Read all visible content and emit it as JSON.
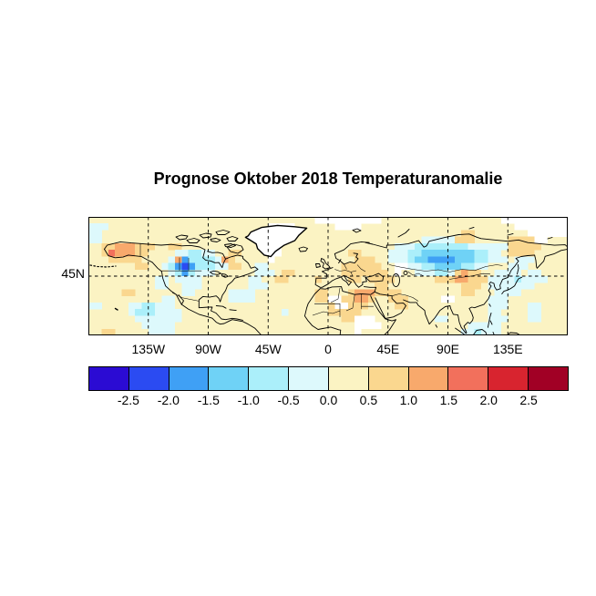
{
  "figure": {
    "title": "Prognose Oktober 2018 Temperaturanomalie",
    "background": "#FFFFFF"
  },
  "map": {
    "y_tick_label": "45N",
    "x_ticks": [
      {
        "label": "135W",
        "lon": -135
      },
      {
        "label": "90W",
        "lon": -90
      },
      {
        "label": "45W",
        "lon": -45
      },
      {
        "label": "0",
        "lon": 0
      },
      {
        "label": "45E",
        "lon": 45
      },
      {
        "label": "90E",
        "lon": 90
      },
      {
        "label": "135E",
        "lon": 135
      }
    ],
    "grid_lats": [
      45
    ],
    "lon_range": [
      -180,
      180
    ],
    "lat_range": [
      0,
      90
    ],
    "gridline_style": "dashed"
  },
  "colorbar": {
    "tick_labels": [
      "-2.5",
      "-2.0",
      "-1.5",
      "-1.0",
      "-0.5",
      "0.0",
      "0.5",
      "1.0",
      "1.5",
      "2.0",
      "2.5"
    ],
    "tick_values": [
      -2.5,
      -2.0,
      -1.5,
      -1.0,
      -0.5,
      0.0,
      0.5,
      1.0,
      1.5,
      2.0,
      2.5
    ],
    "colors": [
      "#2B0BD3",
      "#2B4BF2",
      "#3FA0F5",
      "#6FD2F6",
      "#ABEFFA",
      "#DDF9FC",
      "#FBF3C3",
      "#FAD78F",
      "#F8A96C",
      "#F2705C",
      "#D8242F",
      "#A10025"
    ],
    "no_data_color": "#FFFFFF"
  },
  "chart_data": {
    "type": "heatmap",
    "title": "Prognose Oktober 2018 Temperaturanomalie",
    "xlabel": "",
    "ylabel": "",
    "x_tick_labels": [
      "135W",
      "90W",
      "45W",
      "0",
      "45E",
      "90E",
      "135E"
    ],
    "y_tick_labels": [
      "45N"
    ],
    "lon_range": [
      -180,
      180
    ],
    "lat_range": [
      0,
      90
    ],
    "legend_position": "bottom",
    "grid_lines": {
      "lons": [
        -135,
        -90,
        -45,
        0,
        45,
        90,
        135
      ],
      "lats": [
        45
      ],
      "style": "dashed"
    },
    "colorbar_ticks": [
      -2.5,
      -2.0,
      -1.5,
      -1.0,
      -0.5,
      0.0,
      0.5,
      1.0,
      1.5,
      2.0,
      2.5
    ],
    "colorbar_colors": [
      "#2B0BD3",
      "#2B4BF2",
      "#3FA0F5",
      "#6FD2F6",
      "#ABEFFA",
      "#DDF9FC",
      "#FBF3C3",
      "#FAD78F",
      "#F8A96C",
      "#F2705C",
      "#D8242F",
      "#A10025"
    ],
    "grid": {
      "cols": 72,
      "rows": 18,
      "cell_deg": 5,
      "origin": "col 0 = 180W..175W, row 0 = 85N..90N",
      "palette_key": {
        "0": "< -2.5",
        "1": "-2.5..-2.0",
        "2": "-2.0..-1.5",
        "3": "-1.5..-1.0",
        "4": "-1.0..-0.5",
        "5": "-0.5..0.0",
        "6": "0.0..0.5",
        "7": "0.5..1.0",
        "8": "1.0..1.5",
        "9": "1.5..2.0",
        "A": "2.0..2.5",
        "B": "> 2.5",
        "W": "no data"
      },
      "rows_data": [
        [
          "666666",
          "666666",
          "666666",
          "666666",
          "666666",
          "6666WW",
          "WWWWWW",
          "WW6666",
          "666666",
          "666666",
          "66WWWW",
          "WWWWWW"
        ],
        [
          "555666",
          "666666",
          "666666",
          "666666",
          "666WWW",
          "W66666",
          "6WWWW6",
          "666666",
          "666666",
          "666666",
          "6666WW",
          "WWWWWW"
        ],
        [
          "556666",
          "666666",
          "666666",
          "666666",
          "666WWW",
          "W66666",
          "666666",
          "666666",
          "666666",
          "667766",
          "666666",
          "WWWWWW"
        ],
        [
          "556666",
          "666666",
          "666666",
          "666666",
          "666WW6",
          "666666",
          "666666",
          "666666",
          "665555",
          "577766",
          "666777",
          "7WW666"
        ],
        [
          "667788",
          "877766",
          "776666",
          "666666",
          "666WW6",
          "666666",
          "666666",
          "666655",
          "544444",
          "444555",
          "555777",
          "776666"
        ],
        [
          "667988",
          "877666",
          "655445",
          "566776",
          "666WW6",
          "666666",
          "666776",
          "666555",
          "443333",
          "333344",
          "556777",
          "766666"
        ],
        [
          "666777",
          "776666",
          "582444",
          "458766",
          "666W66",
          "666666",
          "666677",
          "766555",
          "433222",
          "233344",
          "555655",
          "566666"
        ],
        [
          "666666",
          "677665",
          "421244",
          "455776",
          "655666",
          "666666",
          "667777",
          "7766WW",
          "554433",
          "334455",
          "666555",
          "666666"
        ],
        [
          "666666",
          "666666",
          "542455",
          "566666",
          "655567",
          "766666",
          "667777",
          "7776W6",
          "655544",
          "578776",
          "655556",
          "556666"
        ],
        [
          "666666",
          "666655",
          "655556",
          "666666",
          "556677",
          "666676",
          "666776",
          "777766",
          "666677",
          "788777",
          "555545",
          "555666"
        ],
        [
          "666666",
          "666655",
          "665556",
          "666666",
          "555666",
          "666666",
          "666666",
          "677666",
          "666666",
          "667776",
          "555555",
          "566666"
        ],
        [
          "666667",
          "766666",
          "665566",
          "666555",
          "566666",
          "666677",
          "666788",
          "877776",
          "666666",
          "667766",
          "655556",
          "666666"
        ],
        [
          "666666",
          "666665",
          "566666",
          "666555",
          "566666",
          "666677",
          "WW7788",
          "766777",
          "66666W",
          "W66666",
          "555666",
          "666666"
        ],
        [
          "556666",
          "554455",
          "566666",
          "666666",
          "666666",
          "666666",
          "7WW777",
          "666677",
          "666666",
          "666666",
          "555666",
          "556666"
        ],
        [
          "666666",
          "544455",
          "556666",
          "666666",
          "666665",
          "666666",
          "777776",
          "666666",
          "666666",
          "666666",
          "556666",
          "556666"
        ],
        [
          "666666",
          "655555",
          "556666",
          "666666",
          "666666",
          "666666",
          "6677WW",
          "W66666",
          "666655",
          "666666",
          "555666",
          "556666"
        ],
        [
          "666666",
          "665555",
          "566666",
          "666666",
          "666666",
          "666666",
          "6666WW",
          "WW6666",
          "666666",
          "666555",
          "556666",
          "666666"
        ],
        [
          "667766",
          "666555",
          "566666",
          "666666",
          "666666",
          "666666",
          "6666W6",
          "666666",
          "666666",
          "665545",
          "556666",
          "666666"
        ]
      ]
    }
  }
}
